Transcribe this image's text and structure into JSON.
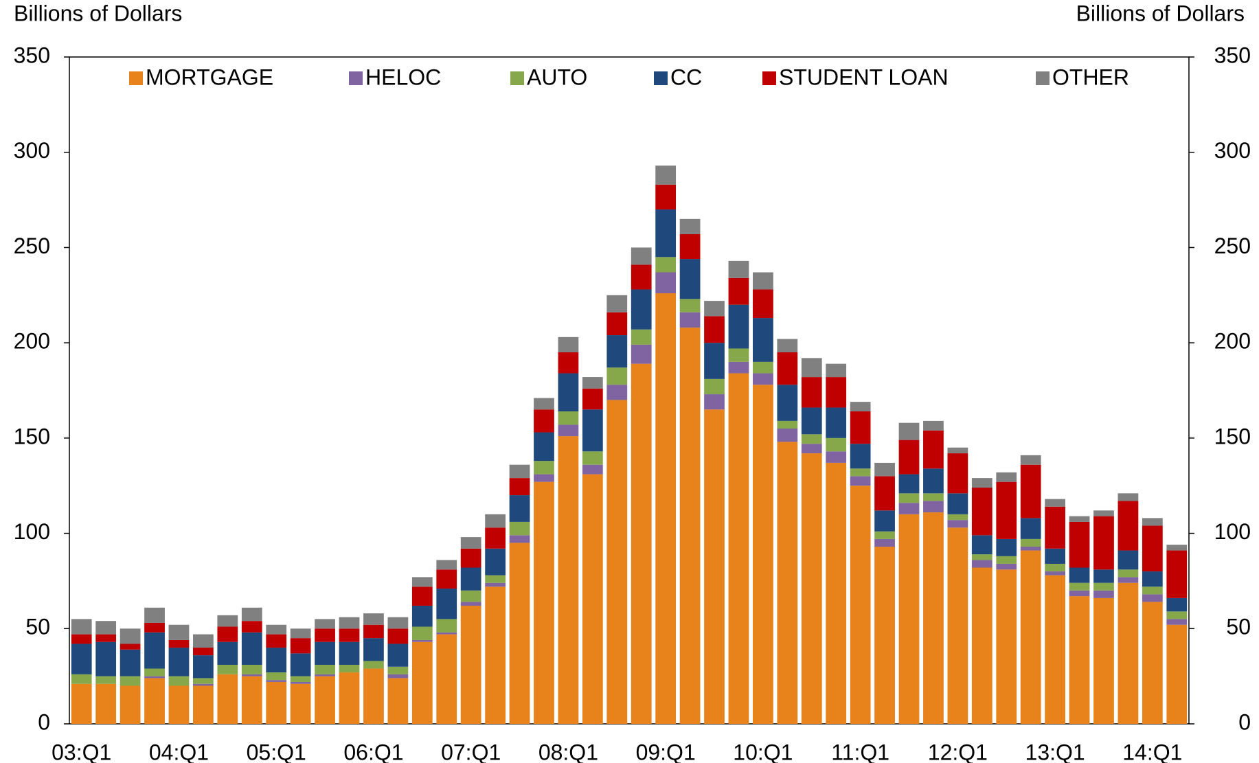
{
  "chart_data": {
    "type": "stacked_bar",
    "y_label": "Billions of Dollars",
    "y2_label": "Billions of Dollars",
    "categories": [
      "03:Q1",
      null,
      null,
      null,
      "04:Q1",
      null,
      null,
      null,
      "05:Q1",
      null,
      null,
      null,
      "06:Q1",
      null,
      null,
      null,
      "07:Q1",
      null,
      null,
      null,
      "08:Q1",
      null,
      null,
      null,
      "09:Q1",
      null,
      null,
      null,
      "10:Q1",
      null,
      null,
      null,
      "11:Q1",
      null,
      null,
      null,
      "12:Q1",
      null,
      null,
      null,
      "13:Q1",
      null,
      null,
      null,
      "14:Q1",
      null
    ],
    "series": [
      {
        "name": "MORTGAGE",
        "color": "#e8821a",
        "values": [
          21,
          21,
          20,
          24,
          20,
          20,
          26,
          25,
          22,
          21,
          25,
          27,
          29,
          24,
          43,
          47,
          62,
          72,
          95,
          127,
          151,
          131,
          170,
          189,
          226,
          208,
          165,
          184,
          178,
          148,
          142,
          137,
          125,
          93,
          110,
          111,
          103,
          82,
          81,
          91,
          78,
          67,
          66,
          74,
          64,
          52
        ]
      },
      {
        "name": "HELOC",
        "color": "#8064a2",
        "values": [
          0,
          0,
          0,
          1,
          0,
          1,
          0,
          1,
          1,
          1,
          1,
          0,
          0,
          2,
          1,
          1,
          2,
          2,
          4,
          4,
          6,
          5,
          8,
          10,
          11,
          8,
          8,
          6,
          6,
          7,
          5,
          6,
          5,
          4,
          6,
          6,
          4,
          4,
          3,
          2,
          2,
          3,
          4,
          3,
          4,
          3
        ]
      },
      {
        "name": "AUTO",
        "color": "#86a84b",
        "values": [
          5,
          4,
          5,
          4,
          5,
          3,
          5,
          5,
          4,
          3,
          5,
          4,
          4,
          4,
          7,
          7,
          6,
          4,
          7,
          7,
          7,
          7,
          9,
          8,
          8,
          7,
          8,
          7,
          6,
          4,
          5,
          7,
          4,
          4,
          5,
          4,
          3,
          3,
          4,
          4,
          4,
          4,
          4,
          4,
          4,
          4
        ]
      },
      {
        "name": "CC",
        "color": "#1f497d",
        "values": [
          16,
          18,
          14,
          19,
          15,
          12,
          12,
          17,
          13,
          12,
          12,
          12,
          12,
          12,
          11,
          16,
          12,
          14,
          14,
          15,
          20,
          22,
          17,
          21,
          25,
          21,
          19,
          23,
          23,
          19,
          14,
          16,
          13,
          11,
          10,
          13,
          11,
          10,
          9,
          11,
          8,
          8,
          7,
          10,
          8,
          7
        ]
      },
      {
        "name": "STUDENT LOAN",
        "color": "#c00000",
        "values": [
          5,
          4,
          3,
          5,
          4,
          4,
          8,
          6,
          7,
          8,
          7,
          7,
          7,
          8,
          10,
          10,
          10,
          11,
          9,
          12,
          11,
          11,
          12,
          13,
          13,
          13,
          14,
          14,
          15,
          17,
          16,
          16,
          17,
          18,
          18,
          20,
          21,
          25,
          30,
          28,
          22,
          24,
          28,
          26,
          24,
          25
        ]
      },
      {
        "name": "OTHER",
        "color": "#808080",
        "values": [
          8,
          7,
          8,
          8,
          8,
          7,
          6,
          7,
          5,
          5,
          5,
          6,
          6,
          6,
          5,
          5,
          6,
          7,
          7,
          6,
          8,
          6,
          9,
          9,
          10,
          8,
          8,
          9,
          9,
          7,
          10,
          7,
          5,
          7,
          9,
          5,
          3,
          5,
          5,
          5,
          4,
          3,
          3,
          4,
          4,
          3
        ]
      }
    ],
    "ylim": [
      0,
      350
    ],
    "yticks": [
      0,
      50,
      100,
      150,
      200,
      250,
      300,
      350
    ],
    "y2lim": [
      0,
      350
    ],
    "y2ticks": [
      0,
      50,
      100,
      150,
      200,
      250,
      300,
      350
    ],
    "legend": "top",
    "grid": false
  }
}
